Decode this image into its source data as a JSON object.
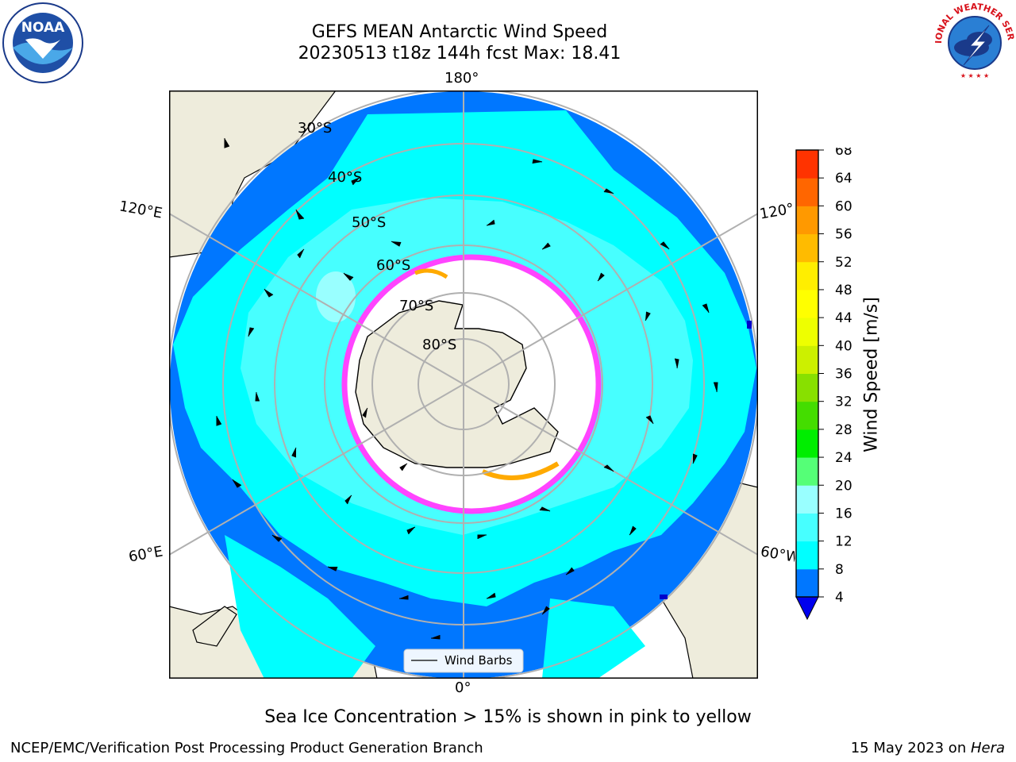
{
  "header": {
    "title_line1": "GEFS MEAN Antarctic Wind Speed",
    "title_line2": "20230513 t18z 144h fcst   Max: 18.41"
  },
  "logos": {
    "left": "noaa-logo",
    "left_text": "NOAA",
    "right": "national-weather-service-logo",
    "right_text": "NATIONAL WEATHER SERVICE"
  },
  "map": {
    "projection": "south-polar-stereographic",
    "meridian_labels": {
      "top": "180°",
      "bottom": "0°",
      "left_upper": "120°E",
      "left_lower": "60°E",
      "right_upper": "120°W",
      "right_lower": "60°W"
    },
    "parallel_labels": [
      "30°S",
      "40°S",
      "50°S",
      "60°S",
      "70°S",
      "80°S"
    ],
    "legend_label": "Wind Barbs",
    "colors": {
      "land": "#eeecdc",
      "ice": "#ffffff",
      "ocean_base": "#0077ff",
      "ocean_mid": "#00ffff",
      "ocean_strong": "#47ffff",
      "sea_ice_edge": "#ff44ff",
      "sea_ice_high": "#ffaa00"
    }
  },
  "colorbar": {
    "label": "Wind Speed [m/s]",
    "ticks": [
      "4",
      "8",
      "12",
      "16",
      "20",
      "24",
      "28",
      "32",
      "36",
      "40",
      "44",
      "48",
      "52",
      "56",
      "60",
      "64",
      "68"
    ],
    "colors": [
      "#0077ff",
      "#00ffff",
      "#47ffff",
      "#99ffff",
      "#55ff77",
      "#00ee00",
      "#44dd00",
      "#88e000",
      "#ccf000",
      "#eeff00",
      "#ffff00",
      "#ffee00",
      "#ffbb00",
      "#ff9900",
      "#ff6600",
      "#ff3300"
    ],
    "extend_color": "#0000ee"
  },
  "footer": {
    "note": "Sea Ice Concentration > 15% is shown in pink to yellow",
    "credit": "NCEP/EMC/Verification Post Processing Product Generation Branch",
    "date": "15 May 2023 on ",
    "machine": "Hera"
  }
}
